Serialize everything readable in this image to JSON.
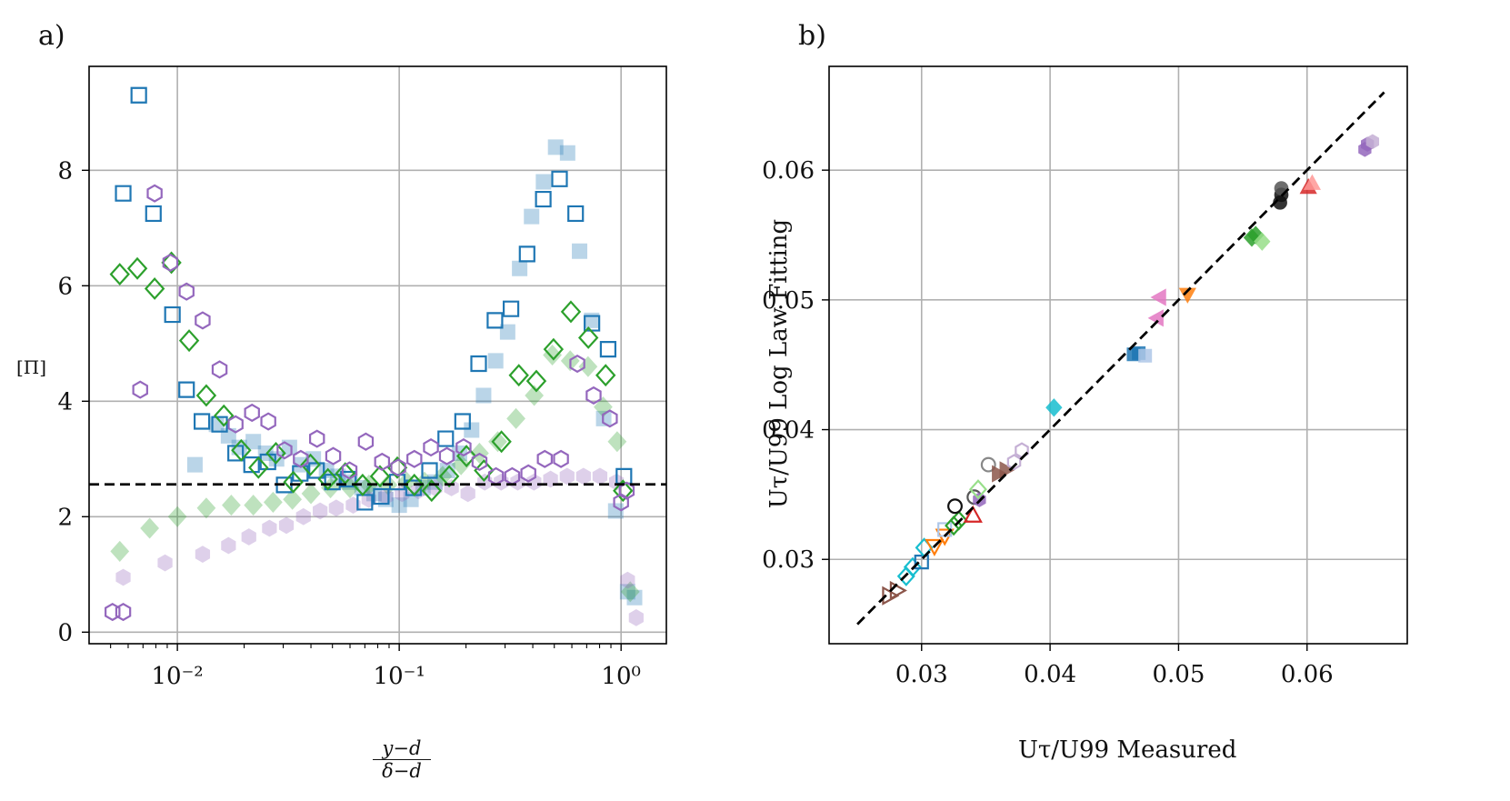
{
  "panels": {
    "a": {
      "label": "a)"
    },
    "b": {
      "label": "b)"
    }
  },
  "chart_data": [
    {
      "type": "scatter",
      "panel": "a)",
      "ylabel": "[Π]",
      "xlabel_num": "y−d",
      "xlabel_den": "δ−d",
      "xscale": "log",
      "xlim": [
        0.004,
        1.6
      ],
      "ylim": [
        -0.2,
        9.8
      ],
      "xticks": [
        {
          "v": 0.01,
          "label": "10⁻²"
        },
        {
          "v": 0.1,
          "label": "10⁻¹"
        },
        {
          "v": 1,
          "label": "10⁰"
        }
      ],
      "yticks": [
        {
          "v": 0,
          "label": "0"
        },
        {
          "v": 2,
          "label": "2"
        },
        {
          "v": 4,
          "label": "4"
        },
        {
          "v": 6,
          "label": "6"
        },
        {
          "v": 8,
          "label": "8"
        }
      ],
      "grid": true,
      "hline": 2.56,
      "colors": {
        "blue": "#1f77b4",
        "green": "#2ca02c",
        "purple": "#9467bd"
      },
      "series": [
        {
          "marker": "square",
          "color": "#1f77b4",
          "filled": true,
          "alpha": 0.3,
          "x": [
            0.012,
            0.015,
            0.017,
            0.019,
            0.022,
            0.025,
            0.028,
            0.032,
            0.036,
            0.041,
            0.047,
            0.053,
            0.06,
            0.068,
            0.077,
            0.087,
            0.1,
            0.113,
            0.128,
            0.145,
            0.165,
            0.187,
            0.212,
            0.24,
            0.272,
            0.308,
            0.349,
            0.395,
            0.447,
            0.507,
            0.574,
            0.65,
            0.737,
            0.835,
            0.946,
            1.07,
            1.15
          ],
          "y": [
            2.9,
            3.6,
            3.4,
            3.2,
            3.3,
            3.1,
            3.0,
            3.2,
            2.9,
            3.0,
            2.8,
            2.7,
            2.6,
            2.5,
            2.4,
            2.3,
            2.2,
            2.3,
            2.5,
            2.6,
            2.8,
            3.1,
            3.5,
            4.1,
            4.7,
            5.2,
            6.3,
            7.2,
            7.8,
            8.4,
            8.3,
            6.6,
            5.4,
            3.7,
            2.1,
            0.7,
            0.6
          ]
        },
        {
          "marker": "diamond",
          "color": "#2ca02c",
          "filled": true,
          "alpha": 0.3,
          "x": [
            0.0055,
            0.0075,
            0.01,
            0.0135,
            0.0175,
            0.022,
            0.027,
            0.033,
            0.04,
            0.049,
            0.06,
            0.073,
            0.089,
            0.108,
            0.13,
            0.157,
            0.19,
            0.23,
            0.278,
            0.336,
            0.406,
            0.49,
            0.59,
            0.71,
            0.83,
            0.96,
            1.1
          ],
          "y": [
            1.4,
            1.8,
            2.0,
            2.15,
            2.2,
            2.2,
            2.25,
            2.3,
            2.4,
            2.5,
            2.5,
            2.55,
            2.55,
            2.6,
            2.6,
            2.7,
            2.9,
            3.1,
            3.3,
            3.7,
            4.1,
            4.8,
            4.7,
            4.6,
            3.9,
            3.3,
            0.7
          ]
        },
        {
          "marker": "hexagon",
          "color": "#9467bd",
          "filled": true,
          "alpha": 0.3,
          "x": [
            0.0057,
            0.0088,
            0.013,
            0.017,
            0.021,
            0.026,
            0.031,
            0.037,
            0.044,
            0.052,
            0.062,
            0.073,
            0.087,
            0.103,
            0.122,
            0.145,
            0.172,
            0.204,
            0.243,
            0.288,
            0.342,
            0.405,
            0.481,
            0.571,
            0.677,
            0.803,
            0.953,
            1.07,
            1.17
          ],
          "y": [
            0.95,
            1.2,
            1.35,
            1.5,
            1.65,
            1.8,
            1.85,
            2.0,
            2.1,
            2.15,
            2.2,
            2.3,
            2.35,
            2.4,
            2.45,
            2.5,
            2.5,
            2.4,
            2.6,
            2.6,
            2.6,
            2.6,
            2.65,
            2.7,
            2.7,
            2.7,
            2.6,
            0.9,
            0.25
          ]
        },
        {
          "marker": "square",
          "color": "#1f77b4",
          "filled": false,
          "x": [
            0.0057,
            0.0067,
            0.0078,
            0.0095,
            0.011,
            0.0129,
            0.0155,
            0.0183,
            0.0216,
            0.0256,
            0.0303,
            0.0358,
            0.0424,
            0.05,
            0.059,
            0.07,
            0.083,
            0.098,
            0.116,
            0.137,
            0.162,
            0.193,
            0.228,
            0.27,
            0.319,
            0.377,
            0.446,
            0.528,
            0.624,
            0.739,
            0.874,
            1.03
          ],
          "y": [
            7.6,
            9.3,
            7.25,
            5.5,
            4.2,
            3.65,
            3.6,
            3.1,
            2.9,
            2.95,
            2.55,
            2.75,
            2.8,
            2.6,
            2.65,
            2.25,
            2.35,
            2.6,
            2.5,
            2.8,
            3.35,
            3.65,
            4.65,
            5.4,
            5.6,
            6.55,
            7.5,
            7.85,
            7.25,
            5.35,
            4.9,
            2.7
          ]
        },
        {
          "marker": "diamond",
          "color": "#2ca02c",
          "filled": false,
          "x": [
            0.0055,
            0.0066,
            0.0079,
            0.0094,
            0.0113,
            0.0135,
            0.0162,
            0.0194,
            0.0232,
            0.0278,
            0.0333,
            0.0398,
            0.0477,
            0.0571,
            0.0684,
            0.0819,
            0.098,
            0.117,
            0.14,
            0.168,
            0.201,
            0.241,
            0.289,
            0.346,
            0.415,
            0.496,
            0.594,
            0.712,
            0.852,
            1.02
          ],
          "y": [
            6.2,
            6.3,
            5.95,
            6.4,
            5.05,
            4.1,
            3.75,
            3.15,
            2.85,
            3.1,
            2.6,
            2.9,
            2.65,
            2.75,
            2.55,
            2.7,
            2.85,
            2.55,
            2.45,
            2.7,
            3.05,
            2.8,
            3.3,
            4.45,
            4.35,
            4.9,
            5.55,
            5.1,
            4.45,
            2.45
          ]
        },
        {
          "marker": "hexagon",
          "color": "#9467bd",
          "filled": false,
          "x": [
            0.0051,
            0.0057,
            0.0068,
            0.0079,
            0.0093,
            0.011,
            0.013,
            0.0155,
            0.0183,
            0.0217,
            0.0257,
            0.0304,
            0.036,
            0.0426,
            0.0504,
            0.0597,
            0.0707,
            0.0837,
            0.099,
            0.117,
            0.139,
            0.164,
            0.195,
            0.23,
            0.273,
            0.323,
            0.382,
            0.453,
            0.536,
            0.635,
            0.752,
            0.89,
            1.0,
            1.06
          ],
          "y": [
            0.35,
            0.35,
            4.2,
            7.6,
            6.4,
            5.9,
            5.4,
            4.55,
            3.6,
            3.8,
            3.65,
            3.15,
            3.0,
            3.35,
            3.05,
            2.8,
            3.3,
            2.95,
            2.85,
            3.0,
            3.2,
            3.05,
            3.2,
            2.95,
            2.7,
            2.7,
            2.75,
            3.0,
            3.0,
            4.65,
            4.1,
            3.7,
            2.25,
            2.45
          ]
        }
      ]
    },
    {
      "type": "scatter",
      "panel": "b)",
      "xlabel": "Uτ/U99 Measured",
      "ylabel": "Uτ/U99 Log Law Fitting",
      "xlim": [
        0.0228,
        0.0678
      ],
      "ylim": [
        0.0235,
        0.068
      ],
      "xticks": [
        {
          "v": 0.03,
          "label": "0.03"
        },
        {
          "v": 0.04,
          "label": "0.04"
        },
        {
          "v": 0.05,
          "label": "0.05"
        },
        {
          "v": 0.06,
          "label": "0.06"
        }
      ],
      "yticks": [
        {
          "v": 0.03,
          "label": "0.03"
        },
        {
          "v": 0.04,
          "label": "0.04"
        },
        {
          "v": 0.05,
          "label": "0.05"
        },
        {
          "v": 0.06,
          "label": "0.06"
        }
      ],
      "grid": true,
      "refline": {
        "x": [
          0.025,
          0.066
        ],
        "y": [
          0.025,
          0.066
        ]
      },
      "points": [
        {
          "marker": "triangle-right",
          "color": "#8c564b",
          "filled": false,
          "x": 0.0275,
          "y": 0.0272
        },
        {
          "marker": "triangle-right",
          "color": "#8c564b",
          "filled": false,
          "x": 0.0281,
          "y": 0.0276
        },
        {
          "marker": "diamond",
          "color": "#17becf",
          "filled": false,
          "x": 0.0288,
          "y": 0.0287
        },
        {
          "marker": "diamond",
          "color": "#17becf",
          "filled": false,
          "x": 0.0293,
          "y": 0.0294
        },
        {
          "marker": "square",
          "color": "#1f77b4",
          "filled": false,
          "x": 0.03,
          "y": 0.0298
        },
        {
          "marker": "diamond",
          "color": "#17becf",
          "filled": false,
          "x": 0.0302,
          "y": 0.0309
        },
        {
          "marker": "triangle-down",
          "color": "#ff7f0e",
          "filled": false,
          "x": 0.031,
          "y": 0.031
        },
        {
          "marker": "triangle-down",
          "color": "#ff7f0e",
          "filled": false,
          "x": 0.0318,
          "y": 0.0318
        },
        {
          "marker": "square",
          "color": "#aec7e8",
          "filled": false,
          "x": 0.0318,
          "y": 0.0323
        },
        {
          "marker": "diamond",
          "color": "#2ca02c",
          "filled": false,
          "x": 0.0325,
          "y": 0.0326
        },
        {
          "marker": "diamond",
          "color": "#2ca02c",
          "filled": false,
          "x": 0.0329,
          "y": 0.033
        },
        {
          "marker": "circle",
          "color": "#111111",
          "filled": false,
          "x": 0.0326,
          "y": 0.0341
        },
        {
          "marker": "triangle-up",
          "color": "#d62728",
          "filled": false,
          "x": 0.034,
          "y": 0.0334
        },
        {
          "marker": "circle",
          "color": "#555555",
          "filled": false,
          "x": 0.0341,
          "y": 0.0348
        },
        {
          "marker": "hexagon",
          "color": "#9467bd",
          "filled": true,
          "x": 0.0345,
          "y": 0.0346
        },
        {
          "marker": "diamond",
          "color": "#98df8a",
          "filled": false,
          "x": 0.0344,
          "y": 0.0354
        },
        {
          "marker": "circle",
          "color": "#888888",
          "filled": false,
          "x": 0.0352,
          "y": 0.0373
        },
        {
          "marker": "triangle-right",
          "color": "#8c564b",
          "filled": true,
          "x": 0.036,
          "y": 0.0366
        },
        {
          "marker": "triangle-right",
          "color": "#8c564b",
          "filled": true,
          "x": 0.0366,
          "y": 0.0369
        },
        {
          "marker": "hexagon",
          "color": "#c5b0d5",
          "filled": false,
          "x": 0.0372,
          "y": 0.0375
        },
        {
          "marker": "hexagon",
          "color": "#c5b0d5",
          "filled": false,
          "x": 0.0378,
          "y": 0.0384
        },
        {
          "marker": "diamond",
          "color": "#17becf",
          "filled": true,
          "x": 0.0403,
          "y": 0.0417
        },
        {
          "marker": "square",
          "color": "#1f77b4",
          "filled": true,
          "x": 0.0465,
          "y": 0.0458
        },
        {
          "marker": "square",
          "color": "#1f77b4",
          "filled": true,
          "x": 0.0469,
          "y": 0.0459
        },
        {
          "marker": "square",
          "color": "#aec7e8",
          "filled": true,
          "x": 0.0474,
          "y": 0.0457
        },
        {
          "marker": "triangle-left",
          "color": "#e377c2",
          "filled": true,
          "x": 0.0483,
          "y": 0.0486
        },
        {
          "marker": "triangle-left",
          "color": "#e377c2",
          "filled": true,
          "x": 0.0485,
          "y": 0.0502
        },
        {
          "marker": "triangle-down",
          "color": "#ff7f0e",
          "filled": true,
          "x": 0.0507,
          "y": 0.0504
        },
        {
          "marker": "diamond",
          "color": "#2ca02c",
          "filled": true,
          "x": 0.0557,
          "y": 0.0548
        },
        {
          "marker": "diamond",
          "color": "#2ca02c",
          "filled": true,
          "x": 0.056,
          "y": 0.055
        },
        {
          "marker": "diamond",
          "color": "#98df8a",
          "filled": true,
          "x": 0.0565,
          "y": 0.0545
        },
        {
          "marker": "circle",
          "color": "#111111",
          "filled": true,
          "x": 0.0579,
          "y": 0.0575
        },
        {
          "marker": "circle",
          "color": "#111111",
          "filled": true,
          "x": 0.058,
          "y": 0.0581
        },
        {
          "marker": "circle",
          "color": "#555555",
          "filled": true,
          "x": 0.058,
          "y": 0.0586
        },
        {
          "marker": "triangle-up",
          "color": "#d62728",
          "filled": true,
          "x": 0.0601,
          "y": 0.0587
        },
        {
          "marker": "triangle-up",
          "color": "#ff9896",
          "filled": true,
          "x": 0.0604,
          "y": 0.059
        },
        {
          "marker": "hexagon",
          "color": "#9467bd",
          "filled": true,
          "x": 0.0645,
          "y": 0.0616
        },
        {
          "marker": "hexagon",
          "color": "#9467bd",
          "filled": true,
          "x": 0.0647,
          "y": 0.062
        },
        {
          "marker": "hexagon",
          "color": "#c5b0d5",
          "filled": true,
          "x": 0.0651,
          "y": 0.0622
        }
      ]
    }
  ]
}
